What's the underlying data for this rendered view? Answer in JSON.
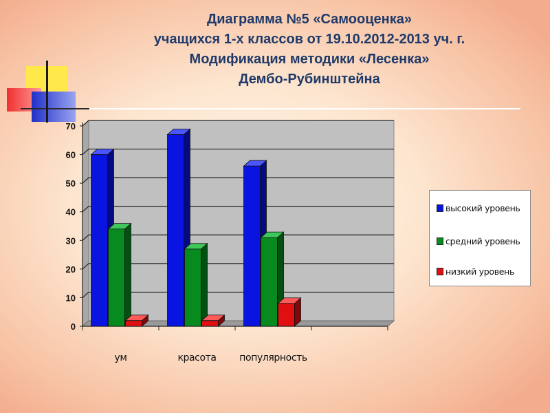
{
  "title": {
    "line1": "Диаграмма №5 «Самооценка»",
    "line2": "учащихся 1-х классов от 19.10.2012-2013 уч. г.",
    "line3": "Модификация методики «Лесенка»",
    "line4": "Дембо-Рубинштейна"
  },
  "colors": {
    "series": [
      "#0a14e0",
      "#078a1e",
      "#e01010"
    ],
    "series_dark": [
      "#050a80",
      "#045012",
      "#800808"
    ],
    "series_light": [
      "#4a55ff",
      "#3fc85a",
      "#ff5a5a"
    ],
    "deco_yellow": "#ffe84a",
    "deco_red": "#f03030",
    "deco_blue": "#2a3ad8"
  },
  "chart_data": {
    "type": "bar",
    "title": "",
    "xlabel": "",
    "ylabel": "",
    "categories": [
      "ум",
      "красота",
      "популярность",
      ""
    ],
    "series": [
      {
        "name": "высокий уровень",
        "values": [
          60,
          67,
          56,
          null
        ]
      },
      {
        "name": "средний уровень",
        "values": [
          34,
          27,
          31,
          null
        ]
      },
      {
        "name": "низкий уровень",
        "values": [
          2,
          2,
          8,
          null
        ]
      }
    ],
    "ylim": [
      0,
      70
    ],
    "yticks": [
      "0",
      "10",
      "20",
      "30",
      "40",
      "50",
      "60",
      "70"
    ],
    "grid": true,
    "legend": "right",
    "style": "3d"
  }
}
